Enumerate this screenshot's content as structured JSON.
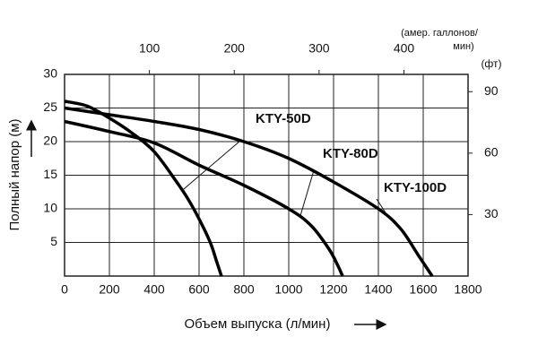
{
  "chart_data": {
    "type": "line",
    "xlabel": "Объем выпуска (л/мин)",
    "ylabel": "Полный напор (м)",
    "x2label": [
      "(амер. галлонов/",
      "мин)"
    ],
    "y2label": "(фт)",
    "xlim": [
      0,
      1800
    ],
    "xticks": [
      0,
      200,
      400,
      600,
      800,
      1000,
      1200,
      1400,
      1600,
      1800
    ],
    "ylim": [
      0,
      30
    ],
    "yticks": [
      5,
      10,
      15,
      20,
      25,
      30
    ],
    "x2lim": [
      0,
      475.55
    ],
    "x2ticks": [
      100,
      200,
      300,
      400
    ],
    "y2lim": [
      0,
      98.43
    ],
    "y2ticks": [
      30,
      60,
      90
    ],
    "grid": true,
    "series": [
      {
        "name": "KTY-50D",
        "color": "#000000",
        "x": [
          0,
          100,
          200,
          300,
          400,
          500,
          550,
          600,
          650,
          680,
          700
        ],
        "values": [
          26,
          25.3,
          23.5,
          21.3,
          18.5,
          14,
          11.5,
          8.5,
          5,
          2,
          0
        ]
      },
      {
        "name": "KTY-80D",
        "color": "#000000",
        "x": [
          0,
          200,
          400,
          600,
          800,
          1000,
          1100,
          1180,
          1220,
          1240
        ],
        "values": [
          23,
          21.5,
          19.8,
          16.5,
          13.5,
          10,
          7.5,
          4,
          1.5,
          0
        ]
      },
      {
        "name": "KTY-100D",
        "color": "#000000",
        "x": [
          0,
          200,
          400,
          600,
          800,
          1000,
          1200,
          1400,
          1500,
          1580,
          1640
        ],
        "values": [
          25,
          24,
          23,
          21.8,
          20,
          17.5,
          14,
          10,
          7,
          3,
          0
        ]
      }
    ]
  }
}
